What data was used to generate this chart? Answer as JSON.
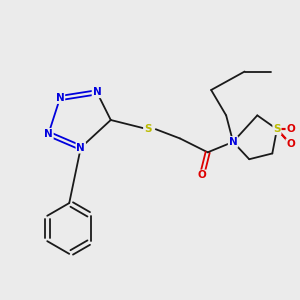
{
  "bg_color": "#ebebeb",
  "bond_color": "#1a1a1a",
  "N_color": "#0000dd",
  "S_color": "#bbbb00",
  "O_color": "#dd0000",
  "lw": 1.3,
  "fs": 7.5,
  "xlim": [
    20,
    280
  ],
  "ylim": [
    30,
    270
  ]
}
